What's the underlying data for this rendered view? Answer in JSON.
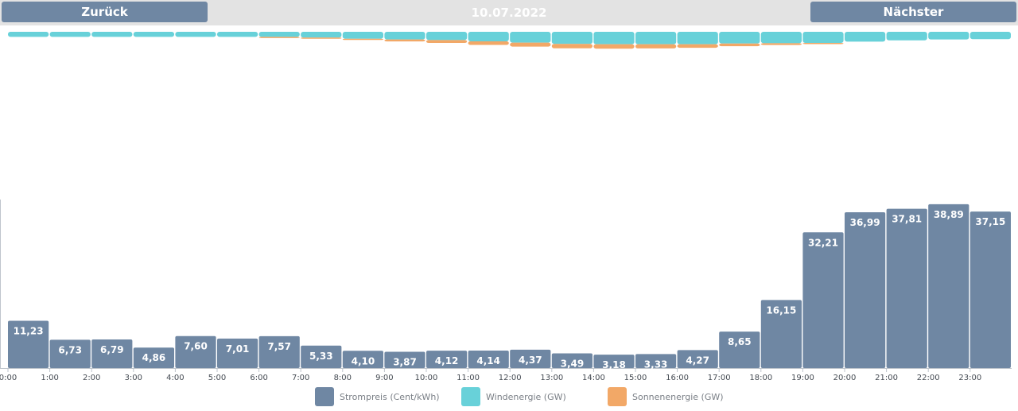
{
  "nav": {
    "prev_label": "Zurück",
    "date": "10.07.2022",
    "next_label": "Nächster"
  },
  "colors": {
    "price": "#6f87a3",
    "wind": "#68d1d9",
    "solar": "#f2a867",
    "topbar": "#e3e3e3"
  },
  "legend": {
    "price": "Strompreis (Cent/kWh)",
    "wind": "Windenergie (GW)",
    "solar": "Sonnenenergie (GW)"
  },
  "chart_data": [
    {
      "type": "bar",
      "title": "",
      "categories": [
        "0:00",
        "1:00",
        "2:00",
        "3:00",
        "4:00",
        "5:00",
        "6:00",
        "7:00",
        "8:00",
        "9:00",
        "10:00",
        "11:00",
        "12:00",
        "13:00",
        "14:00",
        "15:00",
        "16:00",
        "17:00",
        "18:00",
        "19:00",
        "20:00",
        "21:00",
        "22:00",
        "23:00"
      ],
      "series": [
        {
          "name": "Strompreis (Cent/kWh)",
          "values": [
            11.23,
            6.73,
            6.79,
            4.86,
            7.6,
            7.01,
            7.57,
            5.33,
            4.1,
            3.87,
            4.12,
            4.14,
            4.37,
            3.49,
            3.18,
            3.33,
            4.27,
            8.65,
            16.15,
            32.21,
            36.99,
            37.81,
            38.89,
            37.15
          ],
          "labels": [
            "11,23",
            "6,73",
            "6,79",
            "4,86",
            "7,60",
            "7,01",
            "7,57",
            "5,33",
            "4,10",
            "3,87",
            "4,12",
            "4,14",
            "4,37",
            "3,49",
            "3,18",
            "3,33",
            "4,27",
            "8,65",
            "16,15",
            "32,21",
            "36,99",
            "37,81",
            "38,89",
            "37,15"
          ]
        }
      ],
      "ylim": [
        0,
        40
      ],
      "grid": false,
      "legend_position": "bottom"
    },
    {
      "type": "bar",
      "stacked": true,
      "title": "",
      "categories": [
        "0:00",
        "1:00",
        "2:00",
        "3:00",
        "4:00",
        "5:00",
        "6:00",
        "7:00",
        "8:00",
        "9:00",
        "10:00",
        "11:00",
        "12:00",
        "13:00",
        "14:00",
        "15:00",
        "16:00",
        "17:00",
        "18:00",
        "19:00",
        "20:00",
        "21:00",
        "22:00",
        "23:00"
      ],
      "series": [
        {
          "name": "Windenergie (GW)",
          "values": [
            1.6,
            1.6,
            1.6,
            1.6,
            1.6,
            1.6,
            1.6,
            1.8,
            2.2,
            2.4,
            2.6,
            3.0,
            3.4,
            3.8,
            3.9,
            3.9,
            3.9,
            3.7,
            3.6,
            3.5,
            3.1,
            2.7,
            2.4,
            2.3
          ]
        },
        {
          "name": "Sonnenenergie (GW)",
          "values": [
            0,
            0,
            0,
            0,
            0,
            0,
            0.05,
            0.2,
            0.5,
            0.9,
            1.3,
            1.6,
            1.8,
            2.0,
            2.0,
            1.9,
            1.6,
            1.2,
            0.8,
            0.3,
            0,
            0,
            0,
            0
          ]
        }
      ],
      "grid": false,
      "legend_position": "bottom"
    }
  ]
}
